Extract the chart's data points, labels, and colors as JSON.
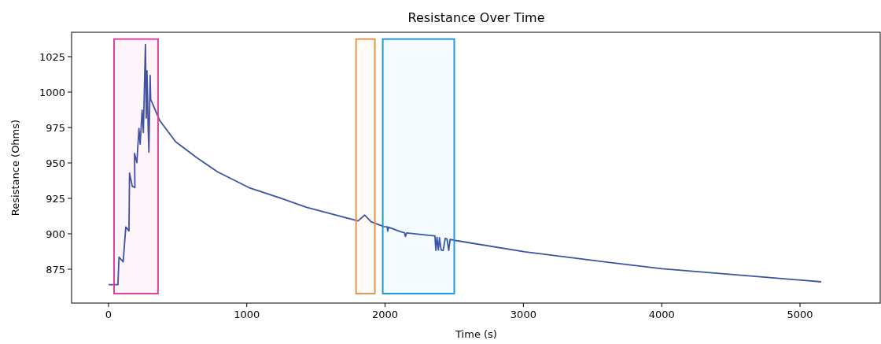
{
  "chart_data": {
    "type": "line",
    "title": "Resistance Over Time",
    "xlabel": "Time (s)",
    "ylabel": "Resistance (Ohms)",
    "x": [
      0,
      68,
      76,
      106,
      125,
      148,
      152,
      172,
      191,
      188,
      205,
      220,
      229,
      243,
      252,
      267,
      273,
      278,
      288,
      292,
      301,
      305,
      314,
      371,
      485,
      636,
      788,
      1015,
      1243,
      1432,
      1804,
      1852,
      1898,
      1991,
      2015,
      2019,
      2025,
      2112,
      2140,
      2147,
      2155,
      2313,
      2360,
      2367,
      2375,
      2385,
      2393,
      2405,
      2420,
      2435,
      2448,
      2460,
      2470,
      2500,
      3010,
      3519,
      4002,
      4591,
      5153
    ],
    "series": [
      {
        "color": "#3a54a4",
        "values": [
          864.1,
          864.1,
          883.5,
          880.2,
          904.8,
          902,
          942.8,
          933.5,
          932.6,
          956.7,
          950.2,
          974.3,
          963.2,
          987.2,
          971.5,
          1033.5,
          981.7,
          1015,
          970.5,
          957.6,
          1011.7,
          994.6,
          992.8,
          979.8,
          965,
          953.9,
          943.7,
          932.6,
          925.2,
          918.7,
          909.1,
          913.2,
          908.5,
          905.1,
          904.9,
          901.9,
          904.6,
          901.4,
          900.8,
          898.1,
          900.6,
          898.9,
          898.5,
          888.3,
          897.5,
          888.5,
          897.2,
          888.6,
          888.3,
          896.8,
          896.2,
          888.3,
          896,
          895.4,
          887.3,
          881,
          875.3,
          870.6,
          866.1
        ]
      }
    ],
    "xlim": [
      -267,
      5580
    ],
    "ylim": [
      851.1,
      1042.2
    ],
    "xticks": [
      0,
      1000,
      2000,
      3000,
      4000,
      5000
    ],
    "yticks": [
      875,
      900,
      925,
      950,
      975,
      1000,
      1025
    ],
    "bands": [
      {
        "axis": "x",
        "from": 40,
        "to": 358,
        "color": "#e0409a"
      },
      {
        "axis": "x",
        "from": 1790,
        "to": 1926,
        "color": "#e8944f"
      },
      {
        "axis": "x",
        "from": 1983,
        "to": 2500,
        "color": "#1f9ad6"
      }
    ],
    "grid": false
  }
}
